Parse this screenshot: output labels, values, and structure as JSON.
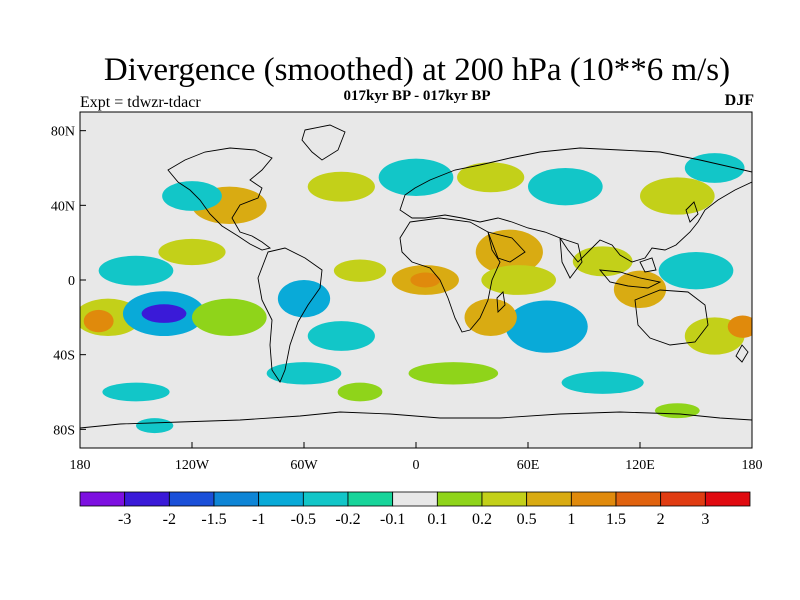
{
  "title": "Divergence (smoothed) at 200 hPa (10**6 m/s)",
  "subtitle": "017kyr BP - 017kyr BP",
  "experiment_label": "Expt = tdwzr-tdacr",
  "season": "DJF",
  "map": {
    "projection": "equirectangular",
    "lon_range": [
      -180,
      180
    ],
    "lat_range": [
      -90,
      90
    ],
    "x_ticks": [
      {
        "lon": -180,
        "label": "180"
      },
      {
        "lon": -120,
        "label": "120W"
      },
      {
        "lon": -60,
        "label": "60W"
      },
      {
        "lon": 0,
        "label": "0"
      },
      {
        "lon": 60,
        "label": "60E"
      },
      {
        "lon": 120,
        "label": "120E"
      },
      {
        "lon": 180,
        "label": "180"
      }
    ],
    "y_ticks": [
      {
        "lat": 80,
        "label": "80N"
      },
      {
        "lat": 40,
        "label": "40N"
      },
      {
        "lat": 0,
        "label": "0"
      },
      {
        "lat": -40,
        "label": "40S"
      },
      {
        "lat": -80,
        "label": "80S"
      }
    ],
    "neutral_color": "#e8e8e8",
    "blobs": [
      {
        "lon": -150,
        "lat": 5,
        "rlon": 20,
        "rlat": 8,
        "c": 5
      },
      {
        "lon": -165,
        "lat": -20,
        "rlon": 18,
        "rlat": 10,
        "c": 9
      },
      {
        "lon": -170,
        "lat": -22,
        "rlon": 8,
        "rlat": 6,
        "c": 11
      },
      {
        "lon": -135,
        "lat": -18,
        "rlon": 22,
        "rlat": 12,
        "c": 4
      },
      {
        "lon": -135,
        "lat": -18,
        "rlon": 12,
        "rlat": 5,
        "c": 1
      },
      {
        "lon": -100,
        "lat": -20,
        "rlon": 20,
        "rlat": 10,
        "c": 8
      },
      {
        "lon": -120,
        "lat": 15,
        "rlon": 18,
        "rlat": 7,
        "c": 9
      },
      {
        "lon": -60,
        "lat": -10,
        "rlon": 14,
        "rlat": 10,
        "c": 4
      },
      {
        "lon": -40,
        "lat": -30,
        "rlon": 18,
        "rlat": 8,
        "c": 5
      },
      {
        "lon": -30,
        "lat": 5,
        "rlon": 14,
        "rlat": 6,
        "c": 9
      },
      {
        "lon": 5,
        "lat": 0,
        "rlon": 18,
        "rlat": 8,
        "c": 10
      },
      {
        "lon": 5,
        "lat": 0,
        "rlon": 8,
        "rlat": 4,
        "c": 11
      },
      {
        "lon": 50,
        "lat": 15,
        "rlon": 18,
        "rlat": 12,
        "c": 10
      },
      {
        "lon": 55,
        "lat": 0,
        "rlon": 20,
        "rlat": 8,
        "c": 9
      },
      {
        "lon": 70,
        "lat": -25,
        "rlon": 22,
        "rlat": 14,
        "c": 4
      },
      {
        "lon": 40,
        "lat": -20,
        "rlon": 14,
        "rlat": 10,
        "c": 10
      },
      {
        "lon": 100,
        "lat": 10,
        "rlon": 16,
        "rlat": 8,
        "c": 9
      },
      {
        "lon": 120,
        "lat": -5,
        "rlon": 14,
        "rlat": 10,
        "c": 10
      },
      {
        "lon": 150,
        "lat": 5,
        "rlon": 20,
        "rlat": 10,
        "c": 5
      },
      {
        "lon": 160,
        "lat": -30,
        "rlon": 16,
        "rlat": 10,
        "c": 9
      },
      {
        "lon": 175,
        "lat": -25,
        "rlon": 8,
        "rlat": 6,
        "c": 11
      },
      {
        "lon": -100,
        "lat": 40,
        "rlon": 20,
        "rlat": 10,
        "c": 10
      },
      {
        "lon": -120,
        "lat": 45,
        "rlon": 16,
        "rlat": 8,
        "c": 5
      },
      {
        "lon": -40,
        "lat": 50,
        "rlon": 18,
        "rlat": 8,
        "c": 9
      },
      {
        "lon": 0,
        "lat": 55,
        "rlon": 20,
        "rlat": 10,
        "c": 5
      },
      {
        "lon": 40,
        "lat": 55,
        "rlon": 18,
        "rlat": 8,
        "c": 9
      },
      {
        "lon": 80,
        "lat": 50,
        "rlon": 20,
        "rlat": 10,
        "c": 5
      },
      {
        "lon": 140,
        "lat": 45,
        "rlon": 20,
        "rlat": 10,
        "c": 9
      },
      {
        "lon": 160,
        "lat": 60,
        "rlon": 16,
        "rlat": 8,
        "c": 5
      },
      {
        "lon": -60,
        "lat": -50,
        "rlon": 20,
        "rlat": 6,
        "c": 5
      },
      {
        "lon": 20,
        "lat": -50,
        "rlon": 24,
        "rlat": 6,
        "c": 8
      },
      {
        "lon": 100,
        "lat": -55,
        "rlon": 22,
        "rlat": 6,
        "c": 5
      },
      {
        "lon": -150,
        "lat": -60,
        "rlon": 18,
        "rlat": 5,
        "c": 5
      },
      {
        "lon": -140,
        "lat": -78,
        "rlon": 10,
        "rlat": 4,
        "c": 5
      },
      {
        "lon": -30,
        "lat": -60,
        "rlon": 12,
        "rlat": 5,
        "c": 8
      },
      {
        "lon": 140,
        "lat": -70,
        "rlon": 12,
        "rlat": 4,
        "c": 8
      }
    ]
  },
  "colorbar": {
    "colors": [
      "#7d10e0",
      "#3a1ad8",
      "#1a4fd8",
      "#0e85d6",
      "#09aad8",
      "#12c6c8",
      "#17d49a",
      "#e8e8e8",
      "#8fd41a",
      "#c3d019",
      "#d9ab12",
      "#e08a0c",
      "#e0620e",
      "#e03c12",
      "#e00a10"
    ],
    "labels": [
      "-3",
      "-2",
      "-1.5",
      "-1",
      "-0.5",
      "-0.2",
      "-0.1",
      "0.1",
      "0.2",
      "0.5",
      "1",
      "1.5",
      "2",
      "3"
    ]
  }
}
